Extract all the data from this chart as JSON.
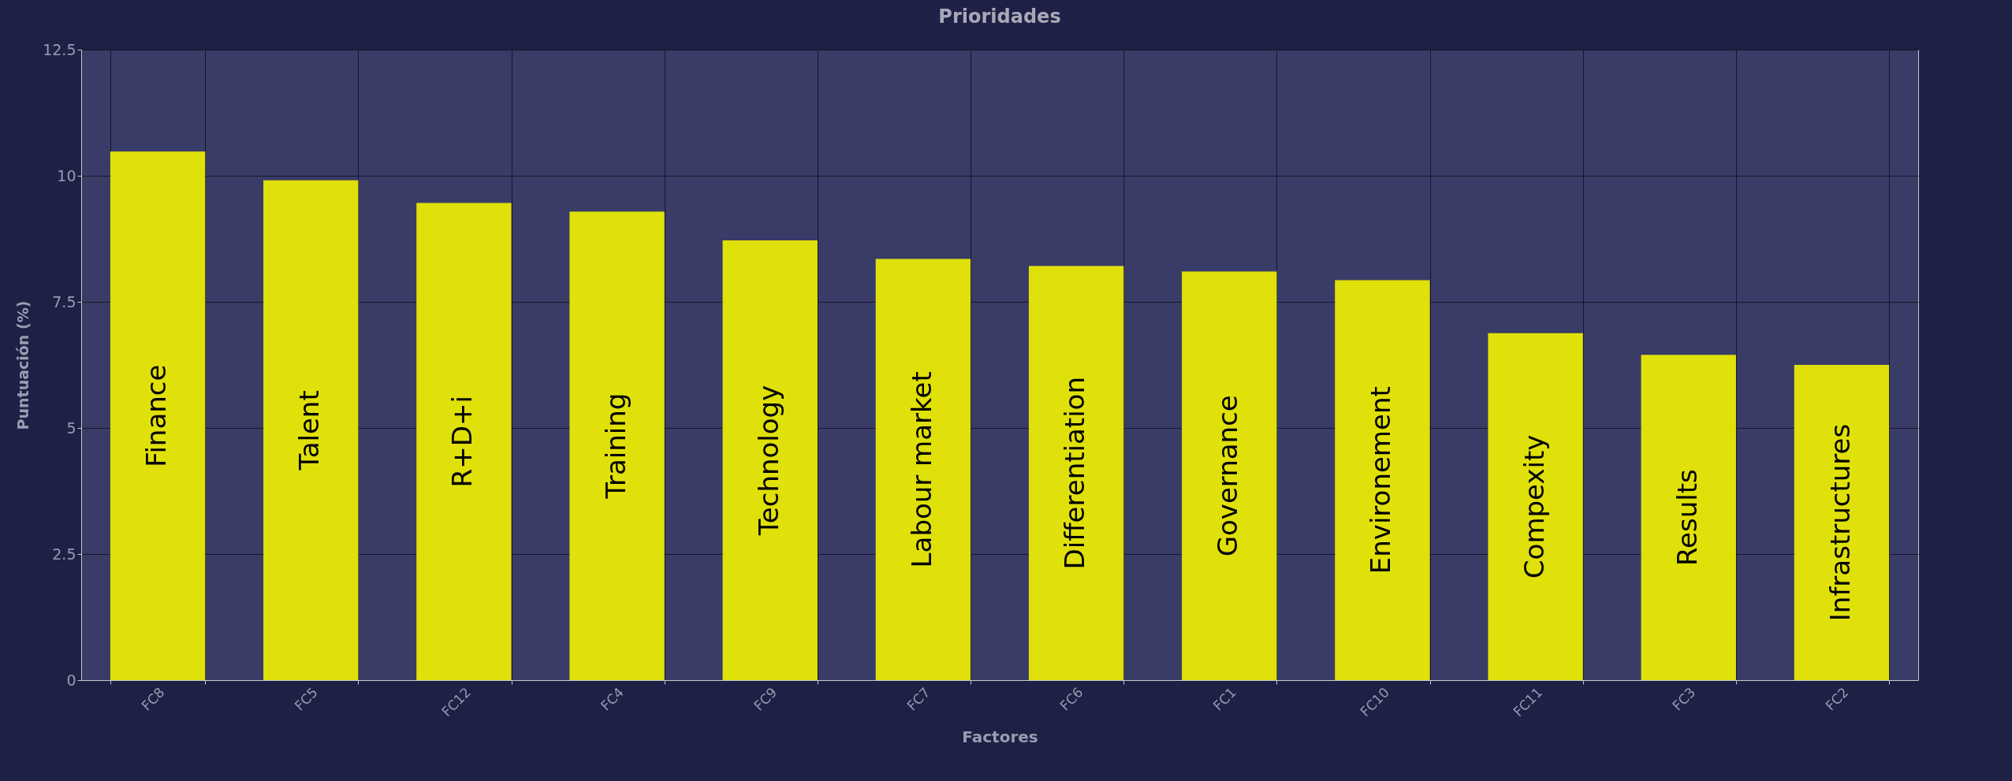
{
  "chart_data": {
    "type": "bar",
    "title": "Prioridades",
    "xlabel": "Factores",
    "ylabel": "Puntuación (%)",
    "categories": [
      "FC8",
      "FC5",
      "FC12",
      "FC4",
      "FC9",
      "FC7",
      "FC6",
      "FC1",
      "FC10",
      "FC11",
      "FC3",
      "FC2"
    ],
    "values": [
      10.48,
      9.91,
      9.46,
      9.29,
      8.72,
      8.35,
      8.21,
      8.1,
      7.93,
      6.88,
      6.45,
      6.25
    ],
    "color": "#e0e00a",
    "ylim": [
      0,
      12.5
    ],
    "yticks": [
      0,
      2.5,
      5,
      7.5,
      10,
      12.5
    ],
    "grid": true,
    "annotations": [
      "Finance",
      "Talent",
      "R+D+i",
      "Training",
      "Technology",
      "Labour market",
      "Differentiation",
      "Governance",
      "Environement",
      "Compexity",
      "Results",
      "Infrastructures"
    ]
  }
}
